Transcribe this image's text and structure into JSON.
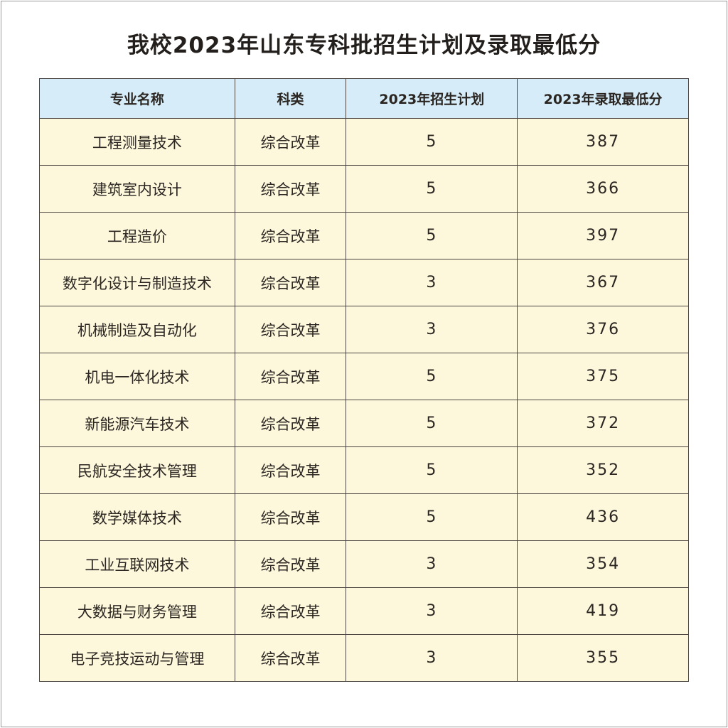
{
  "title": "我校2023年山东专科批招生计划及录取最低分",
  "colors": {
    "header_bg": "#d6ecf8",
    "row_bg": "#fdf8dc",
    "border": "#4a4540"
  },
  "table": {
    "headers": [
      "专业名称",
      "科类",
      "2023年招生计划",
      "2023年录取最低分"
    ],
    "rows": [
      [
        "工程测量技术",
        "综合改革",
        "5",
        "387"
      ],
      [
        "建筑室内设计",
        "综合改革",
        "5",
        "366"
      ],
      [
        "工程造价",
        "综合改革",
        "5",
        "397"
      ],
      [
        "数字化设计与制造技术",
        "综合改革",
        "3",
        "367"
      ],
      [
        "机械制造及自动化",
        "综合改革",
        "3",
        "376"
      ],
      [
        "机电一体化技术",
        "综合改革",
        "5",
        "375"
      ],
      [
        "新能源汽车技术",
        "综合改革",
        "5",
        "372"
      ],
      [
        "民航安全技术管理",
        "综合改革",
        "5",
        "352"
      ],
      [
        "数学媒体技术",
        "综合改革",
        "5",
        "436"
      ],
      [
        "工业互联网技术",
        "综合改革",
        "3",
        "354"
      ],
      [
        "大数据与财务管理",
        "综合改革",
        "3",
        "419"
      ],
      [
        "电子竞技运动与管理",
        "综合改革",
        "3",
        "355"
      ]
    ]
  }
}
